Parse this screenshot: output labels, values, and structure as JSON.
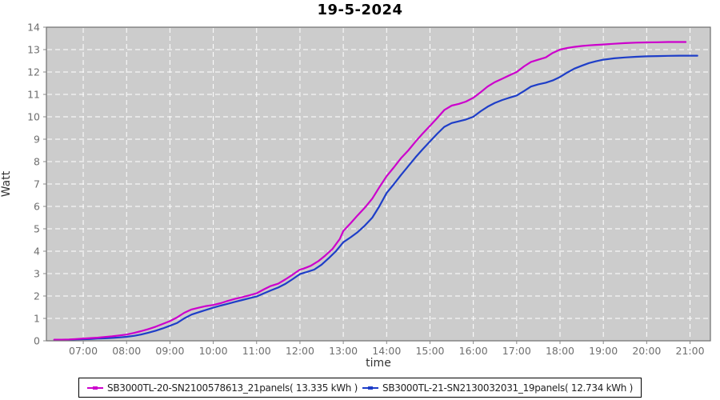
{
  "chart_data": {
    "type": "line",
    "title": "19-5-2024",
    "xlabel": "time",
    "ylabel": "Watt",
    "xlim": [
      6.15,
      21.47
    ],
    "ylim": [
      0,
      14
    ],
    "grid": true,
    "legend_position": "bottom-center",
    "plot_bg_color": "#cccccc",
    "grid_color": "#ffffff",
    "axis_border_color": "#6e6e6e",
    "tick_label_color": "#6e6e6e",
    "x_ticks": [
      7,
      8,
      9,
      10,
      11,
      12,
      13,
      14,
      15,
      16,
      17,
      18,
      19,
      20,
      21
    ],
    "x_tick_labels": [
      "07:00",
      "08:00",
      "09:00",
      "10:00",
      "11:00",
      "12:00",
      "13:00",
      "14:00",
      "15:00",
      "16:00",
      "17:00",
      "18:00",
      "19:00",
      "20:00",
      "21:00"
    ],
    "y_ticks": [
      0,
      1,
      2,
      3,
      4,
      5,
      6,
      7,
      8,
      9,
      10,
      11,
      12,
      13,
      14
    ],
    "y_tick_labels": [
      "0",
      "1",
      "2",
      "3",
      "4",
      "5",
      "6",
      "7",
      "8",
      "9",
      "10",
      "11",
      "12",
      "13",
      "14"
    ],
    "series": [
      {
        "name": "SB3000TL-20-SN2100578613_21panels( 13.335 kWh )",
        "color": "#cc00cc",
        "total_kwh": "13.335",
        "points": [
          [
            6.33,
            0.05
          ],
          [
            6.5,
            0.05
          ],
          [
            6.67,
            0.06
          ],
          [
            6.83,
            0.08
          ],
          [
            7.0,
            0.1
          ],
          [
            7.17,
            0.12
          ],
          [
            7.33,
            0.14
          ],
          [
            7.5,
            0.17
          ],
          [
            7.67,
            0.2
          ],
          [
            7.83,
            0.24
          ],
          [
            8.0,
            0.28
          ],
          [
            8.17,
            0.35
          ],
          [
            8.33,
            0.43
          ],
          [
            8.5,
            0.52
          ],
          [
            8.67,
            0.63
          ],
          [
            8.83,
            0.75
          ],
          [
            9.0,
            0.88
          ],
          [
            9.17,
            1.05
          ],
          [
            9.33,
            1.25
          ],
          [
            9.5,
            1.4
          ],
          [
            9.67,
            1.48
          ],
          [
            9.83,
            1.55
          ],
          [
            10.0,
            1.6
          ],
          [
            10.17,
            1.68
          ],
          [
            10.33,
            1.78
          ],
          [
            10.5,
            1.87
          ],
          [
            10.67,
            1.95
          ],
          [
            10.83,
            2.03
          ],
          [
            11.0,
            2.12
          ],
          [
            11.17,
            2.3
          ],
          [
            11.33,
            2.45
          ],
          [
            11.5,
            2.55
          ],
          [
            11.67,
            2.75
          ],
          [
            11.83,
            2.95
          ],
          [
            12.0,
            3.18
          ],
          [
            12.08,
            3.22
          ],
          [
            12.25,
            3.35
          ],
          [
            12.42,
            3.55
          ],
          [
            12.58,
            3.8
          ],
          [
            12.75,
            4.1
          ],
          [
            12.92,
            4.55
          ],
          [
            13.0,
            4.9
          ],
          [
            13.17,
            5.25
          ],
          [
            13.33,
            5.6
          ],
          [
            13.5,
            5.95
          ],
          [
            13.67,
            6.35
          ],
          [
            13.83,
            6.85
          ],
          [
            14.0,
            7.35
          ],
          [
            14.17,
            7.75
          ],
          [
            14.33,
            8.15
          ],
          [
            14.5,
            8.5
          ],
          [
            14.67,
            8.9
          ],
          [
            14.83,
            9.25
          ],
          [
            15.0,
            9.6
          ],
          [
            15.17,
            9.95
          ],
          [
            15.33,
            10.3
          ],
          [
            15.5,
            10.5
          ],
          [
            15.67,
            10.58
          ],
          [
            15.83,
            10.68
          ],
          [
            16.0,
            10.85
          ],
          [
            16.17,
            11.1
          ],
          [
            16.33,
            11.35
          ],
          [
            16.5,
            11.55
          ],
          [
            16.67,
            11.7
          ],
          [
            16.83,
            11.85
          ],
          [
            17.0,
            12.0
          ],
          [
            17.17,
            12.25
          ],
          [
            17.33,
            12.45
          ],
          [
            17.5,
            12.55
          ],
          [
            17.67,
            12.65
          ],
          [
            17.83,
            12.85
          ],
          [
            18.0,
            13.0
          ],
          [
            18.17,
            13.07
          ],
          [
            18.33,
            13.12
          ],
          [
            18.5,
            13.16
          ],
          [
            18.67,
            13.19
          ],
          [
            18.83,
            13.21
          ],
          [
            19.0,
            13.23
          ],
          [
            19.25,
            13.26
          ],
          [
            19.5,
            13.29
          ],
          [
            19.75,
            13.31
          ],
          [
            20.0,
            13.32
          ],
          [
            20.25,
            13.33
          ],
          [
            20.5,
            13.34
          ],
          [
            20.75,
            13.34
          ],
          [
            20.9,
            13.34
          ]
        ]
      },
      {
        "name": "SB3000TL-21-SN2130032031_19panels( 12.734 kWh )",
        "color": "#1e3ec8",
        "total_kwh": "12.734",
        "points": [
          [
            6.33,
            0.04
          ],
          [
            6.5,
            0.04
          ],
          [
            6.67,
            0.05
          ],
          [
            6.83,
            0.06
          ],
          [
            7.0,
            0.07
          ],
          [
            7.17,
            0.08
          ],
          [
            7.33,
            0.1
          ],
          [
            7.5,
            0.11
          ],
          [
            7.67,
            0.13
          ],
          [
            7.83,
            0.15
          ],
          [
            8.0,
            0.18
          ],
          [
            8.17,
            0.22
          ],
          [
            8.33,
            0.28
          ],
          [
            8.5,
            0.36
          ],
          [
            8.67,
            0.45
          ],
          [
            8.83,
            0.55
          ],
          [
            9.0,
            0.67
          ],
          [
            9.17,
            0.8
          ],
          [
            9.33,
            1.0
          ],
          [
            9.5,
            1.17
          ],
          [
            9.67,
            1.28
          ],
          [
            9.83,
            1.38
          ],
          [
            10.0,
            1.48
          ],
          [
            10.17,
            1.57
          ],
          [
            10.33,
            1.65
          ],
          [
            10.5,
            1.74
          ],
          [
            10.67,
            1.82
          ],
          [
            10.83,
            1.9
          ],
          [
            11.0,
            1.98
          ],
          [
            11.17,
            2.12
          ],
          [
            11.33,
            2.25
          ],
          [
            11.5,
            2.38
          ],
          [
            11.67,
            2.55
          ],
          [
            11.83,
            2.75
          ],
          [
            12.0,
            2.98
          ],
          [
            12.17,
            3.08
          ],
          [
            12.33,
            3.18
          ],
          [
            12.5,
            3.4
          ],
          [
            12.67,
            3.7
          ],
          [
            12.83,
            4.0
          ],
          [
            13.0,
            4.4
          ],
          [
            13.17,
            4.62
          ],
          [
            13.33,
            4.85
          ],
          [
            13.5,
            5.15
          ],
          [
            13.67,
            5.5
          ],
          [
            13.83,
            6.0
          ],
          [
            14.0,
            6.6
          ],
          [
            14.17,
            7.0
          ],
          [
            14.33,
            7.4
          ],
          [
            14.5,
            7.8
          ],
          [
            14.67,
            8.2
          ],
          [
            14.83,
            8.55
          ],
          [
            15.0,
            8.9
          ],
          [
            15.17,
            9.25
          ],
          [
            15.33,
            9.55
          ],
          [
            15.5,
            9.72
          ],
          [
            15.67,
            9.8
          ],
          [
            15.83,
            9.88
          ],
          [
            16.0,
            10.0
          ],
          [
            16.17,
            10.25
          ],
          [
            16.33,
            10.45
          ],
          [
            16.5,
            10.62
          ],
          [
            16.67,
            10.75
          ],
          [
            16.83,
            10.85
          ],
          [
            17.0,
            10.95
          ],
          [
            17.17,
            11.15
          ],
          [
            17.33,
            11.35
          ],
          [
            17.5,
            11.45
          ],
          [
            17.67,
            11.52
          ],
          [
            17.83,
            11.62
          ],
          [
            18.0,
            11.78
          ],
          [
            18.17,
            11.98
          ],
          [
            18.33,
            12.15
          ],
          [
            18.5,
            12.28
          ],
          [
            18.67,
            12.4
          ],
          [
            18.83,
            12.48
          ],
          [
            19.0,
            12.55
          ],
          [
            19.25,
            12.61
          ],
          [
            19.5,
            12.65
          ],
          [
            19.75,
            12.68
          ],
          [
            20.0,
            12.7
          ],
          [
            20.25,
            12.71
          ],
          [
            20.5,
            12.72
          ],
          [
            20.75,
            12.73
          ],
          [
            21.0,
            12.73
          ],
          [
            21.17,
            12.73
          ]
        ]
      }
    ]
  }
}
